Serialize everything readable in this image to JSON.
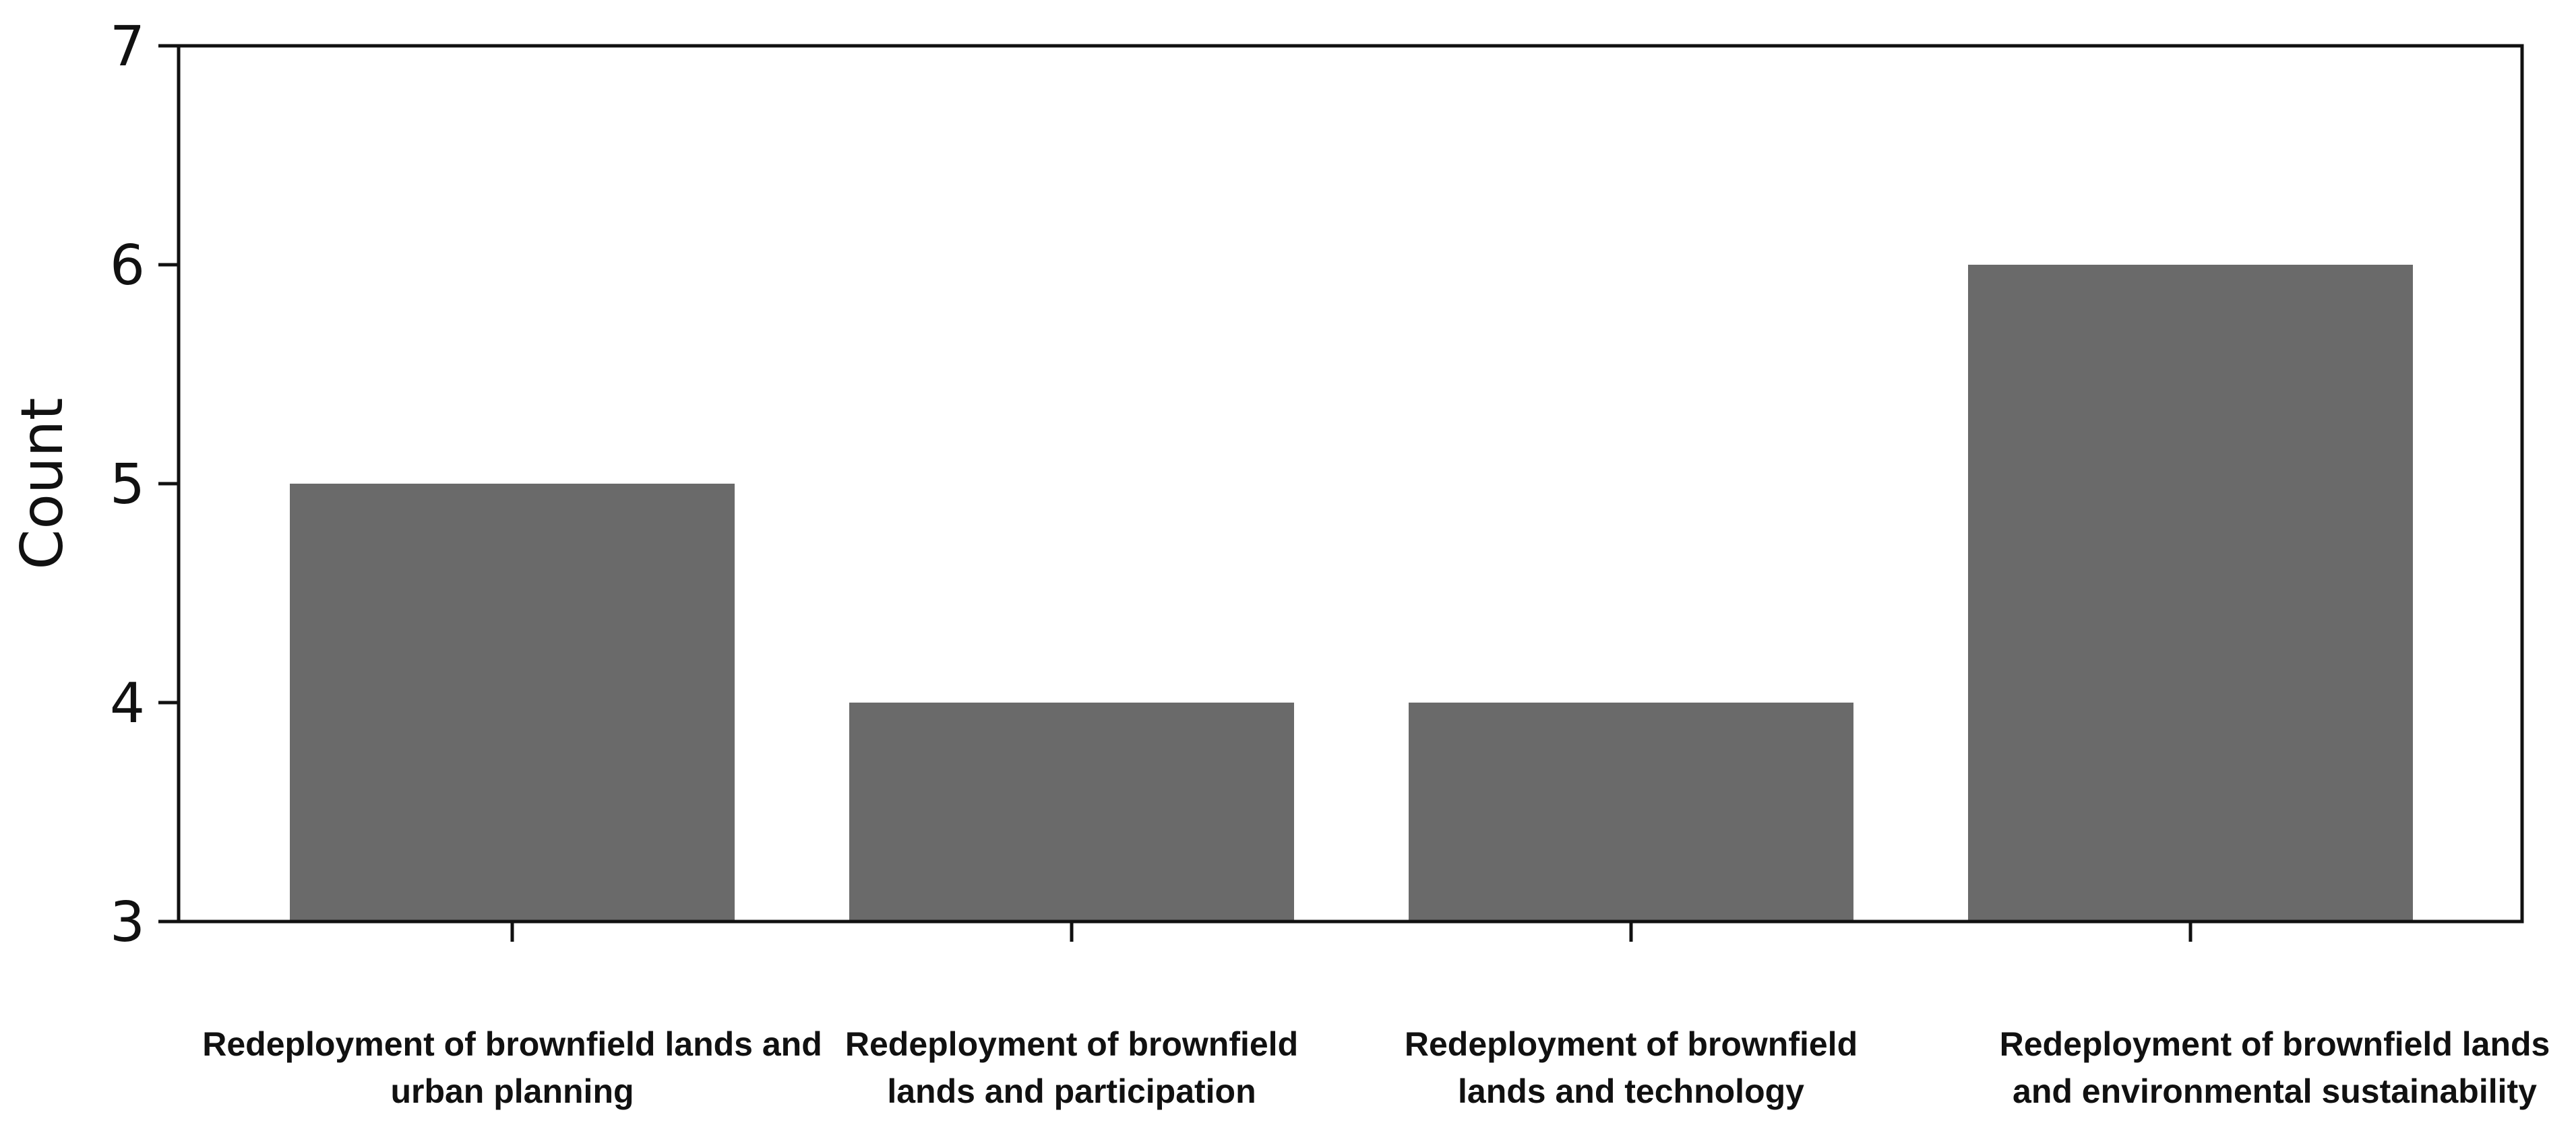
{
  "chart_data": {
    "type": "bar",
    "categories": [
      "Redeployment of brownfield lands and urban planning",
      "Redeployment of brownfield lands and participation",
      "Redeployment of brownfield lands and technology",
      "Redeployment of brownfield lands and environmental sustainability"
    ],
    "category_label_lines": [
      [
        "Redeployment of brownfield lands and",
        "urban planning"
      ],
      [
        "Redeployment of brownfield",
        "lands and participation"
      ],
      [
        "Redeployment of brownfield",
        "lands and technology"
      ],
      [
        "Redeployment of brownfield lands",
        "and environmental sustainability"
      ]
    ],
    "values": [
      5,
      4,
      4,
      6
    ],
    "title": "",
    "xlabel": "",
    "ylabel": "Count",
    "ylim": [
      3,
      7
    ],
    "yticks": [
      3,
      4,
      5,
      6,
      7
    ],
    "grid": false,
    "legend": "none",
    "bar_color": "#6a6a6a"
  }
}
